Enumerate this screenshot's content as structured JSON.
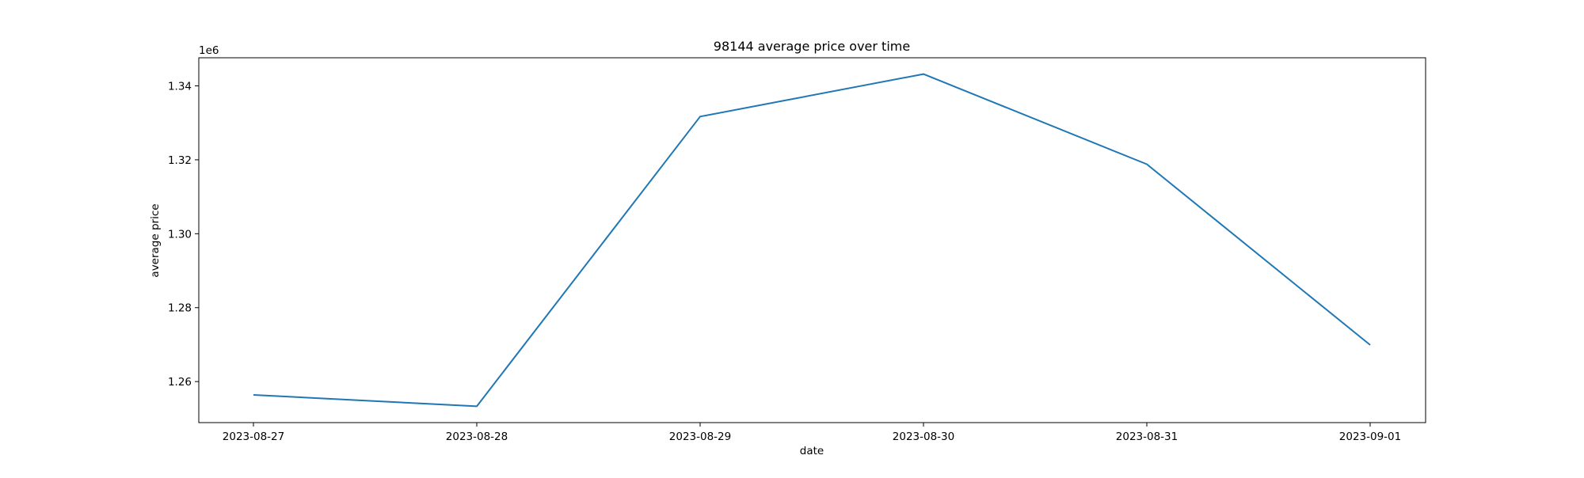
{
  "chart_data": {
    "type": "line",
    "title": "98144 average price over time",
    "xlabel": "date",
    "ylabel": "average price",
    "y_offset_label": "1e6",
    "x": [
      "2023-08-27",
      "2023-08-28",
      "2023-08-29",
      "2023-08-30",
      "2023-08-31",
      "2023-09-01"
    ],
    "series": [
      {
        "values": [
          1256400,
          1253300,
          1331700,
          1343200,
          1318800,
          1269900
        ],
        "color": "#1f77b4"
      }
    ],
    "x_ticks": [
      "2023-08-27",
      "2023-08-28",
      "2023-08-29",
      "2023-08-30",
      "2023-08-31",
      "2023-09-01"
    ],
    "y_ticks": [
      1.26,
      1.28,
      1.3,
      1.32,
      1.34
    ],
    "y_tick_labels": [
      "1.26",
      "1.28",
      "1.30",
      "1.32",
      "1.34"
    ],
    "ylim": [
      1248900,
      1347600
    ],
    "grid": false,
    "legend": "none"
  }
}
